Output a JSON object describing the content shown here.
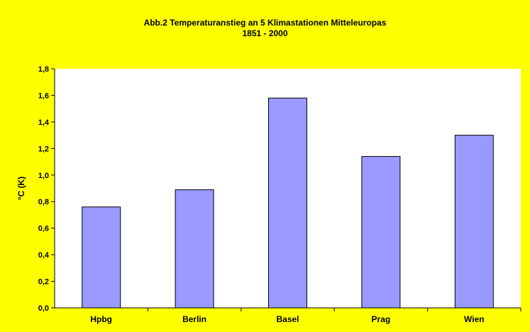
{
  "chart_data": {
    "type": "bar",
    "title": [
      "Abb.2 Temperaturanstieg  an 5 Klimastationen Mitteleuropas",
      "1851 - 2000"
    ],
    "xlabel": "",
    "ylabel": "°C (K)",
    "categories": [
      "Hpbg",
      "Berlin",
      "Basel",
      "Prag",
      "Wien"
    ],
    "values": [
      0.76,
      0.89,
      1.58,
      1.14,
      1.3
    ],
    "ylim": [
      0,
      1.8
    ],
    "yticks": [
      "0,0",
      "0,2",
      "0,4",
      "0,6",
      "0,8",
      "1,0",
      "1,2",
      "1,4",
      "1,6",
      "1,8"
    ],
    "grid": false,
    "legend": "none",
    "colors": {
      "background": "#ffff00",
      "plot_area": "#ffffff",
      "bar_fill": "#9999ff",
      "bar_stroke": "#000000",
      "text": "#000000"
    }
  }
}
